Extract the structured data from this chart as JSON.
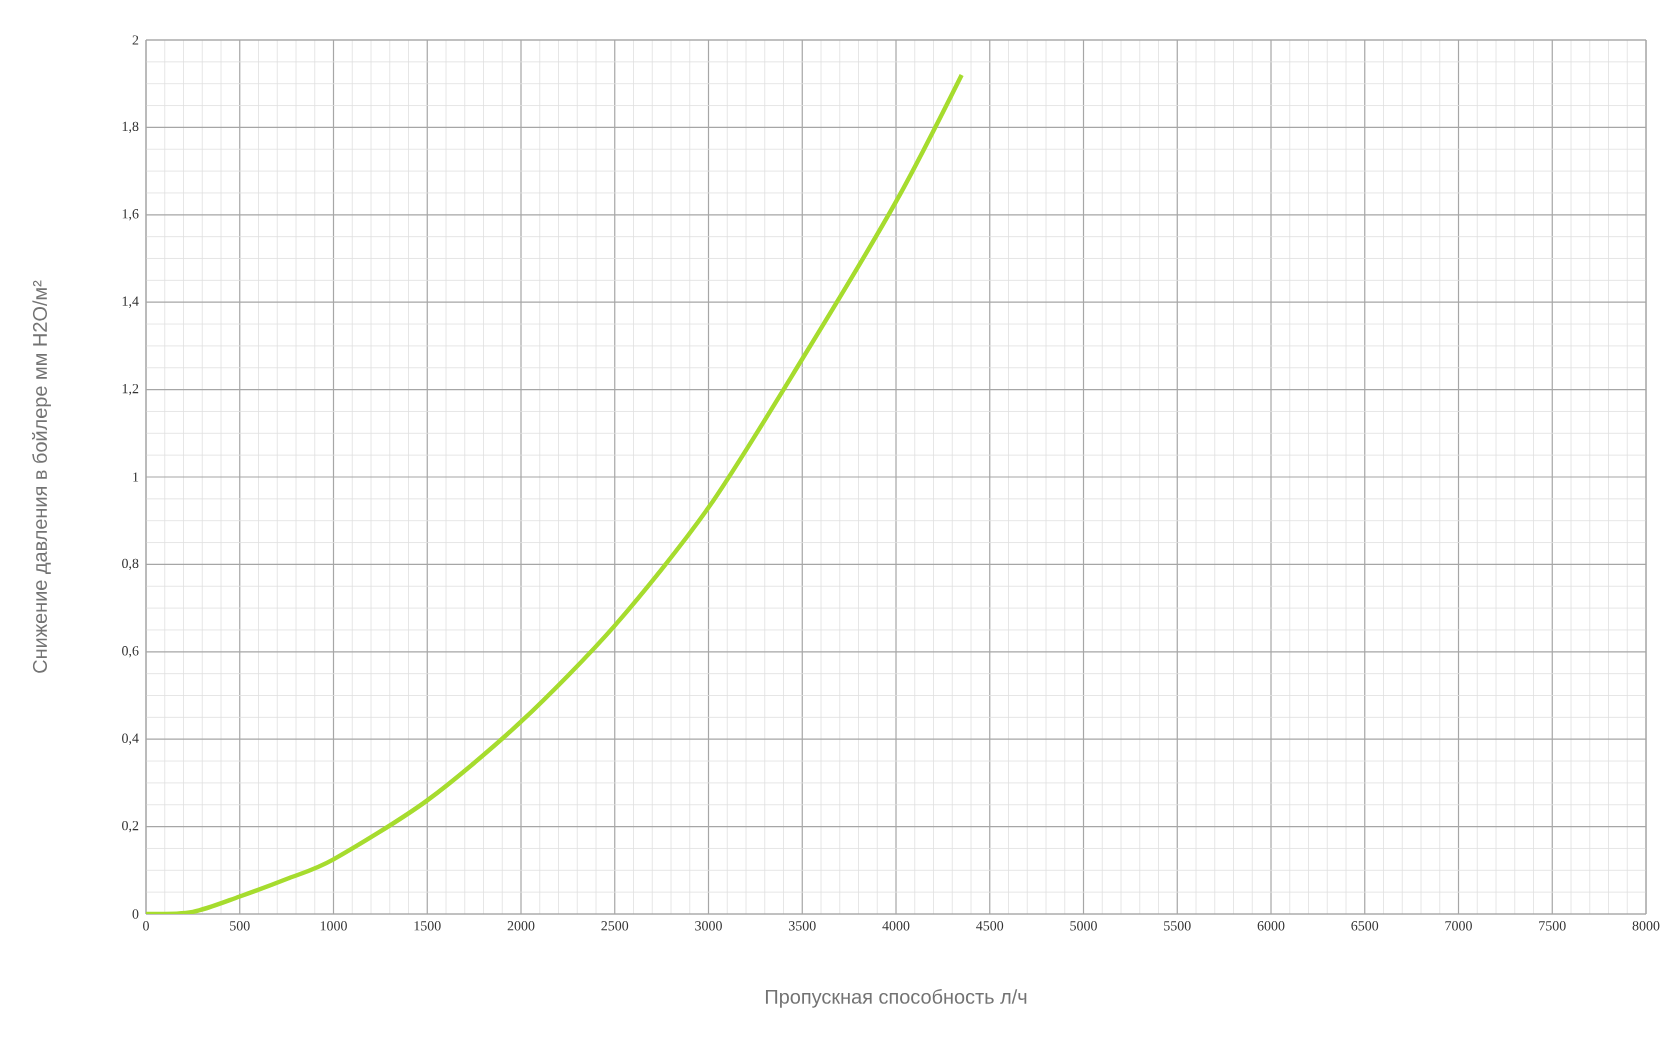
{
  "chart_data": {
    "type": "line",
    "xlabel": "Пропускная способность л/ч",
    "ylabel": "Снижение давления в бойлере мм H2O/м²",
    "xlim": [
      0,
      8000
    ],
    "ylim": [
      0,
      2
    ],
    "xticks": [
      0,
      500,
      1000,
      1500,
      2000,
      2500,
      3000,
      3500,
      4000,
      4500,
      5000,
      5500,
      6000,
      6500,
      7000,
      7500,
      8000
    ],
    "yticks": [
      0,
      {
        "value": 0.2,
        "label": "0,2"
      },
      {
        "value": 0.4,
        "label": "0,4"
      },
      {
        "value": 0.6,
        "label": "0,6"
      },
      {
        "value": 0.8,
        "label": "0,8"
      },
      1,
      {
        "value": 1.2,
        "label": "1,2"
      },
      {
        "value": 1.4,
        "label": "1,4"
      },
      {
        "value": 1.6,
        "label": "1,6"
      },
      {
        "value": 1.8,
        "label": "1,8"
      },
      2
    ],
    "grid": true,
    "x": [
      0,
      250,
      500,
      750,
      1000,
      1500,
      2000,
      2500,
      3000,
      3500,
      4000,
      4350
    ],
    "series": [
      {
        "color": "#a6dc2e",
        "values": [
          0,
          0.005,
          0.04,
          0.08,
          0.125,
          0.26,
          0.44,
          0.66,
          0.93,
          1.27,
          1.63,
          1.92
        ]
      }
    ]
  }
}
